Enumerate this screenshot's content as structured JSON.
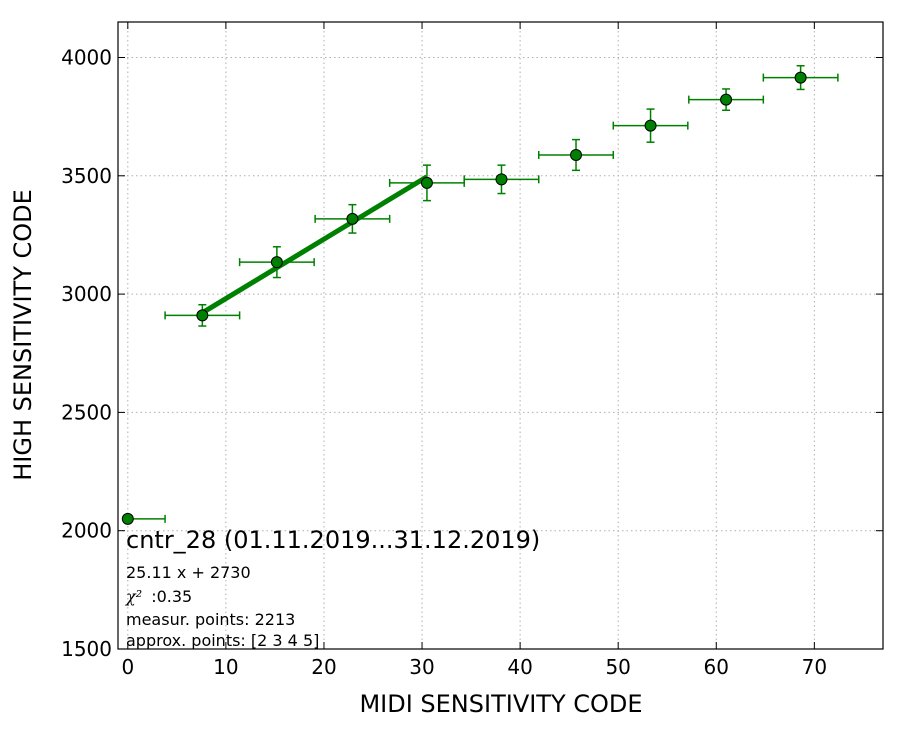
{
  "chart_data": {
    "type": "scatter",
    "xlabel": "MIDI SENSITIVITY CODE",
    "ylabel": "HIGH SENSITIVITY CODE",
    "xlim": [
      -1,
      77
    ],
    "ylim": [
      1500,
      4150
    ],
    "x_ticks": [
      0,
      10,
      20,
      30,
      40,
      50,
      60,
      70
    ],
    "y_ticks": [
      1500,
      2000,
      2500,
      3000,
      3500,
      4000
    ],
    "x_tick_labels": [
      "0",
      "10",
      "20",
      "30",
      "40",
      "50",
      "60",
      "70"
    ],
    "y_tick_labels": [
      "1500",
      "2000",
      "2500",
      "3000",
      "3500",
      "4000"
    ],
    "grid": true,
    "colors": {
      "points": "#008000",
      "fit_line": "#008000",
      "marker_edge": "#000000",
      "grid": "#b0b0b0"
    },
    "series": [
      {
        "points": [
          {
            "x": 0.0,
            "y": 2050,
            "xerr_minus": 0.0,
            "xerr_plus": 3.8,
            "yerr": 0
          },
          {
            "x": 7.6,
            "y": 2910,
            "xerr_minus": 3.8,
            "xerr_plus": 3.8,
            "yerr": 45
          },
          {
            "x": 15.2,
            "y": 3135,
            "xerr_minus": 3.8,
            "xerr_plus": 3.8,
            "yerr": 65
          },
          {
            "x": 22.9,
            "y": 3318,
            "xerr_minus": 3.8,
            "xerr_plus": 3.8,
            "yerr": 60
          },
          {
            "x": 30.5,
            "y": 3470,
            "xerr_minus": 3.8,
            "xerr_plus": 3.8,
            "yerr": 75
          },
          {
            "x": 38.1,
            "y": 3485,
            "xerr_minus": 3.8,
            "xerr_plus": 3.8,
            "yerr": 60
          },
          {
            "x": 45.7,
            "y": 3588,
            "xerr_minus": 3.8,
            "xerr_plus": 3.8,
            "yerr": 65
          },
          {
            "x": 53.3,
            "y": 3712,
            "xerr_minus": 3.8,
            "xerr_plus": 3.8,
            "yerr": 70
          },
          {
            "x": 61.0,
            "y": 3822,
            "xerr_minus": 3.8,
            "xerr_plus": 3.8,
            "yerr": 45
          },
          {
            "x": 68.6,
            "y": 3915,
            "xerr_minus": 3.8,
            "xerr_plus": 3.8,
            "yerr": 50
          }
        ]
      }
    ],
    "fit": {
      "slope": 25.11,
      "intercept": 2730,
      "x_range": [
        7.6,
        30.5
      ]
    },
    "annotations": {
      "title": "cntr_28 (01.11.2019...31.12.2019)",
      "equation": "25.11 x + 2730",
      "chi_symbol": "χ²",
      "chi_value": ":0.35",
      "measur_points": "measur. points: 2213",
      "approx_points": "approx. points: [2 3 4 5]"
    }
  }
}
